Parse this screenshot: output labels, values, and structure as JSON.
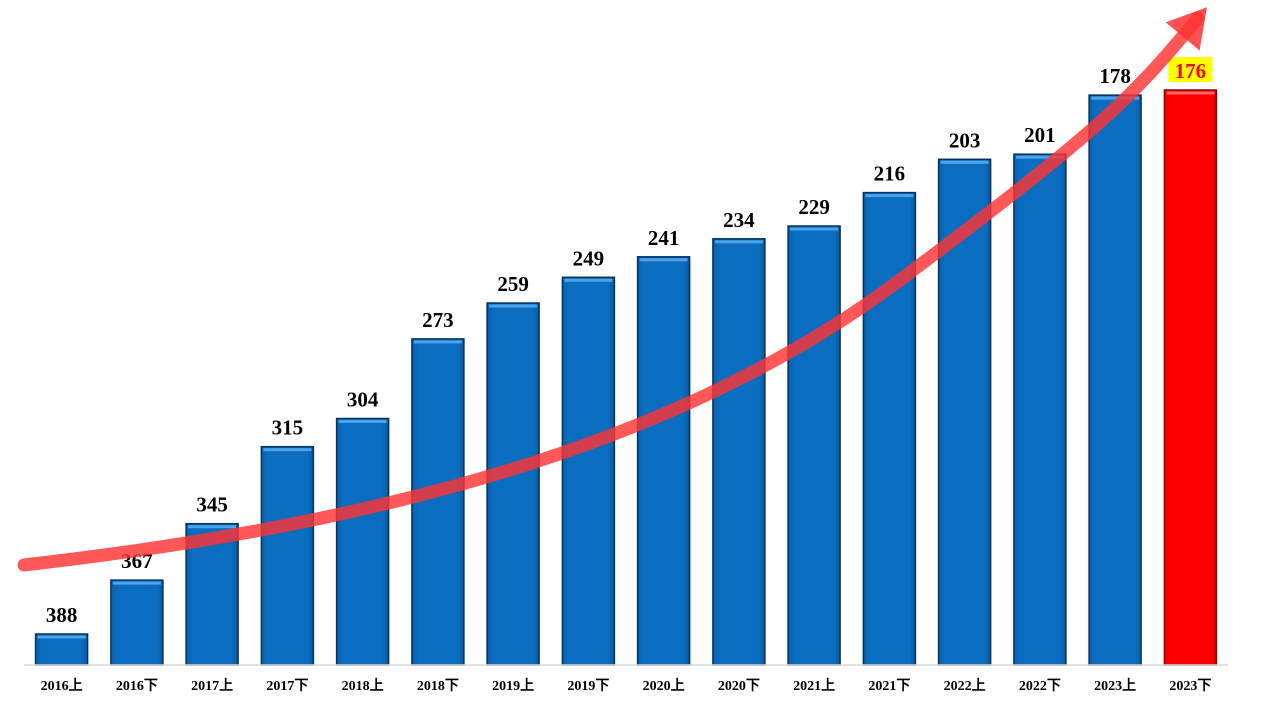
{
  "chart_data": {
    "type": "bar",
    "categories": [
      "2016上",
      "2016下",
      "2017上",
      "2017下",
      "2018上",
      "2018下",
      "2019上",
      "2019下",
      "2020上",
      "2020下",
      "2021上",
      "2021下",
      "2022上",
      "2022下",
      "2023上",
      "2023下"
    ],
    "values": [
      388,
      367,
      345,
      315,
      304,
      273,
      259,
      249,
      241,
      234,
      229,
      216,
      203,
      201,
      178,
      176
    ],
    "title": "",
    "xlabel": "",
    "ylabel": "",
    "axis_inverted": true,
    "grid": false,
    "highlight_index": 15,
    "colors": {
      "bar": "#0070c0",
      "bar_highlight": "#ff0000",
      "highlight_label_bg": "#ffff00",
      "trend_arrow": "#ff3333"
    },
    "annotations": [
      "upward trend arrow"
    ]
  }
}
